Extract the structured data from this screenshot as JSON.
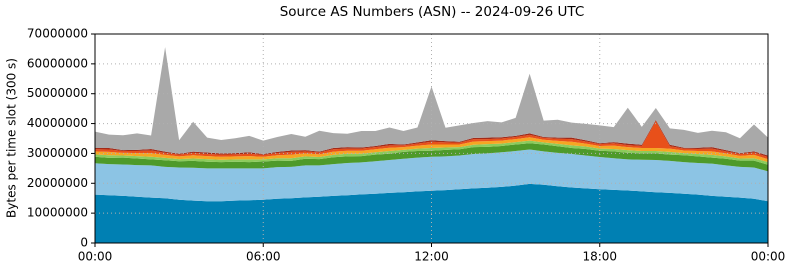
{
  "chart_data": {
    "type": "stacked_area",
    "title": "Source AS Numbers (ASN) -- 2024-09-26 UTC",
    "y_label": "Bytes per time slot (300 s)",
    "x": [
      0,
      0.5,
      1,
      1.5,
      2,
      2.5,
      3,
      3.5,
      4,
      4.5,
      5,
      5.5,
      6,
      6.5,
      7,
      7.5,
      8,
      8.5,
      9,
      9.5,
      10,
      10.5,
      11,
      11.5,
      12,
      12.5,
      13,
      13.5,
      14,
      14.5,
      15,
      15.5,
      16,
      16.5,
      17,
      17.5,
      18,
      18.5,
      19,
      19.5,
      20,
      20.5,
      21,
      21.5,
      22,
      22.5,
      23,
      23.5,
      24
    ],
    "xlim": [
      0,
      24
    ],
    "xticks": [
      {
        "value": 0,
        "label": "00:00"
      },
      {
        "value": 6,
        "label": "06:00"
      },
      {
        "value": 12,
        "label": "12:00"
      },
      {
        "value": 18,
        "label": "18:00"
      },
      {
        "value": 24,
        "label": "00:00"
      }
    ],
    "ylim": [
      0,
      70000000
    ],
    "yticks": [
      0,
      10000000,
      20000000,
      30000000,
      40000000,
      50000000,
      60000000,
      70000000
    ],
    "grid": true,
    "series": [
      {
        "color": "#0080b3",
        "values": [
          16200000,
          16000000,
          15800000,
          15500000,
          15200000,
          15000000,
          14500000,
          14200000,
          14000000,
          14000000,
          14200000,
          14300000,
          14500000,
          14800000,
          15000000,
          15300000,
          15500000,
          15800000,
          16000000,
          16300000,
          16500000,
          16800000,
          17000000,
          17300000,
          17500000,
          17700000,
          18000000,
          18300000,
          18500000,
          18800000,
          19200000,
          19800000,
          19500000,
          19000000,
          18600000,
          18300000,
          18000000,
          17800000,
          17600000,
          17300000,
          17000000,
          16800000,
          16500000,
          16200000,
          15800000,
          15500000,
          15200000,
          14800000,
          14000000
        ]
      },
      {
        "color": "#8cc4e4",
        "values": [
          10500000,
          10400000,
          10500000,
          10600000,
          10800000,
          10500000,
          10800000,
          11000000,
          11000000,
          11000000,
          10800000,
          10700000,
          10500000,
          10600000,
          10500000,
          10700000,
          10500000,
          10600000,
          10800000,
          10700000,
          10900000,
          11000000,
          11200000,
          11300000,
          11400000,
          11300000,
          11300000,
          11500000,
          11500000,
          11600000,
          11600000,
          11500000,
          11200000,
          11200000,
          11200000,
          11000000,
          10800000,
          10600000,
          10400000,
          10600000,
          10800000,
          10700000,
          10600000,
          10600000,
          10800000,
          10500000,
          10300000,
          10500000,
          10000000
        ]
      },
      {
        "color": "#4e9a2a",
        "values": [
          2200000,
          2100000,
          2300000,
          2200000,
          2000000,
          2200000,
          2100000,
          2300000,
          2200000,
          2100000,
          2200000,
          2100000,
          2300000,
          2200000,
          2000000,
          2200000,
          2100000,
          2300000,
          2200000,
          2100000,
          2200000,
          2100000,
          2300000,
          2200000,
          2000000,
          2200000,
          2100000,
          2300000,
          2200000,
          2100000,
          2200000,
          2100000,
          2300000,
          2200000,
          2000000,
          2200000,
          2100000,
          2300000,
          2200000,
          2100000,
          2200000,
          2100000,
          2300000,
          2200000,
          2000000,
          2200000,
          2100000,
          2300000,
          2200000
        ]
      },
      {
        "color": "#8ccb5c",
        "values": [
          800000,
          900000,
          700000,
          800000,
          900000,
          800000,
          700000,
          800000,
          900000,
          800000,
          800000,
          900000,
          700000,
          800000,
          900000,
          800000,
          700000,
          800000,
          900000,
          800000,
          800000,
          900000,
          700000,
          800000,
          900000,
          800000,
          700000,
          800000,
          900000,
          800000,
          800000,
          900000,
          700000,
          800000,
          900000,
          800000,
          700000,
          800000,
          900000,
          800000,
          800000,
          900000,
          700000,
          800000,
          900000,
          800000,
          700000,
          800000,
          900000
        ]
      },
      {
        "color": "#f5a623",
        "values": [
          1000000,
          1100000,
          900000,
          1000000,
          1200000,
          1000000,
          900000,
          1100000,
          1000000,
          1000000,
          1000000,
          1100000,
          900000,
          1000000,
          1200000,
          1000000,
          900000,
          1100000,
          1000000,
          1000000,
          1000000,
          1100000,
          900000,
          1000000,
          1200000,
          1000000,
          900000,
          1100000,
          1000000,
          1000000,
          1000000,
          1100000,
          900000,
          1000000,
          1200000,
          1000000,
          900000,
          1100000,
          1000000,
          1000000,
          1000000,
          1100000,
          900000,
          1000000,
          1200000,
          1000000,
          900000,
          1100000,
          1000000
        ]
      },
      {
        "color": "#e8501a",
        "values": [
          700000,
          800000,
          600000,
          700000,
          900000,
          700000,
          600000,
          800000,
          700000,
          700000,
          700000,
          800000,
          600000,
          700000,
          900000,
          700000,
          600000,
          800000,
          700000,
          700000,
          700000,
          800000,
          600000,
          700000,
          900000,
          700000,
          600000,
          800000,
          700000,
          700000,
          700000,
          800000,
          600000,
          700000,
          900000,
          700000,
          600000,
          800000,
          700000,
          700000,
          9000000,
          800000,
          600000,
          700000,
          900000,
          700000,
          600000,
          800000,
          700000
        ]
      },
      {
        "color": "#a32a18",
        "values": [
          400000,
          500000,
          300000,
          400000,
          500000,
          400000,
          300000,
          400000,
          500000,
          400000,
          400000,
          500000,
          300000,
          400000,
          500000,
          400000,
          300000,
          400000,
          500000,
          400000,
          400000,
          500000,
          300000,
          400000,
          500000,
          400000,
          300000,
          400000,
          500000,
          400000,
          400000,
          500000,
          300000,
          400000,
          500000,
          400000,
          300000,
          400000,
          500000,
          400000,
          400000,
          500000,
          300000,
          400000,
          500000,
          400000,
          300000,
          400000,
          500000
        ]
      },
      {
        "color": "#a9a9a9",
        "values": [
          5500000,
          4500000,
          5000000,
          5500000,
          4500000,
          35000000,
          4500000,
          10000000,
          5000000,
          4500000,
          5000000,
          5500000,
          4500000,
          5000000,
          5500000,
          4500000,
          7000000,
          5000000,
          4500000,
          5500000,
          5000000,
          5500000,
          4500000,
          5000000,
          18000000,
          4500000,
          5500000,
          5000000,
          5500000,
          5000000,
          6000000,
          20000000,
          5500000,
          6000000,
          5000000,
          5500000,
          6000000,
          5000000,
          12000000,
          6000000,
          4000000,
          5500000,
          6000000,
          5000000,
          5500000,
          6000000,
          5000000,
          9000000,
          6000000
        ]
      }
    ]
  }
}
